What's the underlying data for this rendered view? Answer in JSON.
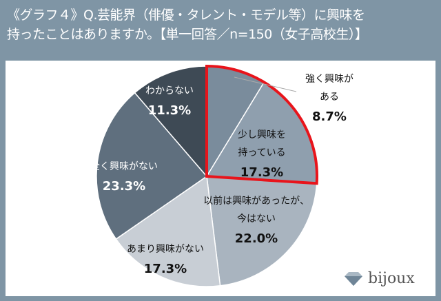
{
  "title": {
    "line1": "《グラフ４》Q.芸能界（俳優・タレント・モデル等）に興味を",
    "line2": "持ったことはありますか。【単一回答／n=150（女子高校生）】"
  },
  "chart_data": {
    "type": "pie",
    "title": "《グラフ４》Q.芸能界（俳優・タレント・モデル等）に興味を持ったことはありますか。【単一回答／n=150（女子高校生）】",
    "start": "12 o'clock, clockwise",
    "slices": [
      {
        "label": [
          "強く興味が",
          "ある"
        ],
        "value": 8.7,
        "value_label": "8.7%",
        "color": "#7a8c9c",
        "text_color": "#111111",
        "outside": true
      },
      {
        "label": [
          "少し興味を",
          "持っている"
        ],
        "value": 17.3,
        "value_label": "17.3%",
        "color": "#8f9fae",
        "text_color": "#111111"
      },
      {
        "label": [
          "以前は興味があったが、",
          "今はない"
        ],
        "value": 22.0,
        "value_label": "22.0%",
        "color": "#a9b4bf",
        "text_color": "#111111"
      },
      {
        "label": [
          "あまり興味がない"
        ],
        "value": 17.3,
        "value_label": "17.3%",
        "color": "#c8ced5",
        "text_color": "#111111"
      },
      {
        "label": [
          "全く興味がない"
        ],
        "value": 23.3,
        "value_label": "23.3%",
        "color": "#5f6f7e",
        "text_color": "#ffffff"
      },
      {
        "label": [
          "わからない"
        ],
        "value": 11.3,
        "value_label": "11.3%",
        "color": "#3e4a55",
        "text_color": "#ffffff"
      }
    ],
    "highlight": {
      "slices": [
        0,
        1
      ],
      "color": "#e8141b"
    }
  },
  "logo": {
    "text": "bijoux"
  }
}
